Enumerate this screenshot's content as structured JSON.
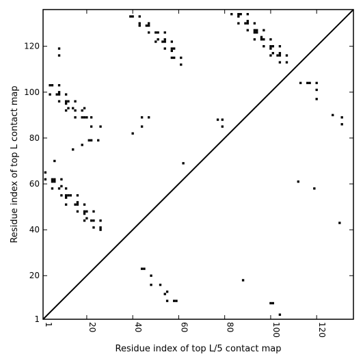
{
  "chart_data": {
    "type": "scatter",
    "title": "",
    "xlabel": "Residue index of top L/5 contact map",
    "ylabel": "Residue index of top L contact map",
    "xlim": [
      1,
      136
    ],
    "ylim": [
      1,
      136
    ],
    "x_ticks": [
      1,
      20,
      40,
      60,
      80,
      100,
      120
    ],
    "y_ticks": [
      1,
      20,
      40,
      60,
      80,
      100,
      120
    ],
    "diagonal": true,
    "marker_color": "#000000",
    "lower_triangle_series": {
      "name": "",
      "points": [
        [
          44,
          23
        ],
        [
          45,
          23
        ],
        [
          48,
          20
        ],
        [
          48,
          16
        ],
        [
          52,
          16
        ],
        [
          54,
          12
        ],
        [
          55,
          13
        ],
        [
          55,
          9
        ],
        [
          58,
          9
        ],
        [
          59,
          9
        ],
        [
          88,
          18
        ],
        [
          100,
          8
        ],
        [
          101,
          8
        ],
        [
          104,
          3
        ],
        [
          130,
          43
        ],
        [
          112,
          61
        ],
        [
          119,
          58
        ],
        [
          131,
          86
        ],
        [
          131,
          89
        ],
        [
          127,
          90
        ],
        [
          120,
          97
        ],
        [
          120,
          101
        ],
        [
          120,
          104
        ],
        [
          117,
          104
        ],
        [
          116,
          104
        ],
        [
          113,
          104
        ],
        [
          79,
          85
        ],
        [
          79,
          88
        ],
        [
          77,
          88
        ],
        [
          62,
          69
        ]
      ]
    },
    "upper_triangle_series": {
      "name": "",
      "points": [
        [
          2,
          65
        ],
        [
          2,
          62
        ],
        [
          5,
          62
        ],
        [
          5,
          61
        ],
        [
          6,
          61
        ],
        [
          6,
          62
        ],
        [
          5,
          58
        ],
        [
          6,
          70
        ],
        [
          8,
          58
        ],
        [
          9,
          59
        ],
        [
          9,
          62
        ],
        [
          9,
          55
        ],
        [
          11,
          58
        ],
        [
          11,
          51
        ],
        [
          12,
          55
        ],
        [
          11,
          55
        ],
        [
          13,
          55
        ],
        [
          11,
          54
        ],
        [
          15,
          51
        ],
        [
          16,
          51
        ],
        [
          16,
          52
        ],
        [
          16,
          55
        ],
        [
          16,
          48
        ],
        [
          19,
          51
        ],
        [
          19,
          48
        ],
        [
          19,
          47
        ],
        [
          20,
          48
        ],
        [
          19,
          44
        ],
        [
          20,
          45
        ],
        [
          22,
          44
        ],
        [
          23,
          44
        ],
        [
          23,
          48
        ],
        [
          23,
          41
        ],
        [
          26,
          44
        ],
        [
          26,
          41
        ],
        [
          26,
          40
        ],
        [
          4,
          103
        ],
        [
          5,
          103
        ],
        [
          4,
          99
        ],
        [
          7,
          99
        ],
        [
          8,
          99
        ],
        [
          8,
          100
        ],
        [
          8,
          103
        ],
        [
          8,
          96
        ],
        [
          11,
          99
        ],
        [
          11,
          96
        ],
        [
          11,
          95
        ],
        [
          12,
          96
        ],
        [
          11,
          92
        ],
        [
          12,
          93
        ],
        [
          14,
          93
        ],
        [
          15,
          92
        ],
        [
          15,
          96
        ],
        [
          15,
          89
        ],
        [
          18,
          92
        ],
        [
          19,
          93
        ],
        [
          18,
          89
        ],
        [
          19,
          89
        ],
        [
          20,
          89
        ],
        [
          22,
          89
        ],
        [
          22,
          85
        ],
        [
          26,
          85
        ],
        [
          14,
          75
        ],
        [
          18,
          77
        ],
        [
          21,
          79
        ],
        [
          22,
          79
        ],
        [
          25,
          79
        ],
        [
          8,
          119
        ],
        [
          8,
          116
        ],
        [
          39,
          133
        ],
        [
          40,
          133
        ],
        [
          43,
          133
        ],
        [
          43,
          130
        ],
        [
          43,
          129
        ],
        [
          46,
          129
        ],
        [
          47,
          129
        ],
        [
          47,
          130
        ],
        [
          47,
          126
        ],
        [
          50,
          126
        ],
        [
          51,
          126
        ],
        [
          50,
          122
        ],
        [
          51,
          123
        ],
        [
          53,
          122
        ],
        [
          54,
          122
        ],
        [
          54,
          123
        ],
        [
          54,
          126
        ],
        [
          54,
          119
        ],
        [
          57,
          119
        ],
        [
          58,
          119
        ],
        [
          57,
          122
        ],
        [
          57,
          118
        ],
        [
          57,
          115
        ],
        [
          58,
          115
        ],
        [
          61,
          115
        ],
        [
          61,
          112
        ],
        [
          40,
          82
        ],
        [
          44,
          85
        ],
        [
          44,
          89
        ],
        [
          47,
          89
        ],
        [
          83,
          134
        ],
        [
          86,
          134
        ],
        [
          87,
          134
        ],
        [
          86,
          133
        ],
        [
          86,
          130
        ],
        [
          89,
          130
        ],
        [
          90,
          130
        ],
        [
          90,
          131
        ],
        [
          90,
          134
        ],
        [
          90,
          127
        ],
        [
          93,
          127
        ],
        [
          94,
          127
        ],
        [
          93,
          130
        ],
        [
          93,
          126
        ],
        [
          94,
          126
        ],
        [
          93,
          123
        ],
        [
          96,
          123
        ],
        [
          97,
          123
        ],
        [
          96,
          124
        ],
        [
          97,
          127
        ],
        [
          97,
          120
        ],
        [
          100,
          120
        ],
        [
          101,
          120
        ],
        [
          100,
          119
        ],
        [
          100,
          123
        ],
        [
          100,
          116
        ],
        [
          101,
          117
        ],
        [
          103,
          116
        ],
        [
          104,
          116
        ],
        [
          104,
          117
        ],
        [
          104,
          120
        ],
        [
          104,
          113
        ],
        [
          107,
          113
        ],
        [
          107,
          116
        ]
      ]
    }
  }
}
